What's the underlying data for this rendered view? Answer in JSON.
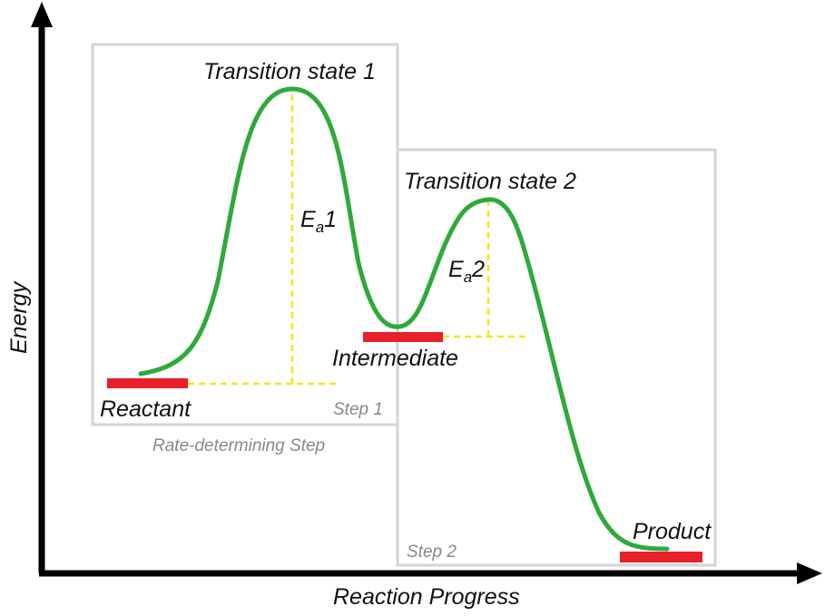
{
  "axes": {
    "x_label": "Reaction Progress",
    "y_label": "Energy"
  },
  "labels": {
    "transition_state_1": "Transition state 1",
    "transition_state_2": "Transition state 2",
    "intermediate": "Intermediate",
    "reactant": "Reactant",
    "product": "Product",
    "activation_1": {
      "symbol": "E",
      "subscript": "a",
      "suffix": "1"
    },
    "activation_2": {
      "symbol": "E",
      "subscript": "a",
      "suffix": "2"
    }
  },
  "steps": {
    "step1_label": "Step 1",
    "step2_label": "Step 2",
    "rate_determining_label": "Rate-determining Step"
  },
  "colors": {
    "curve": "#2eaa3a",
    "level_bar": "#e8202a",
    "guide": "#f5e616",
    "box_border": "#d4d4d4",
    "axis": "#000000"
  }
}
